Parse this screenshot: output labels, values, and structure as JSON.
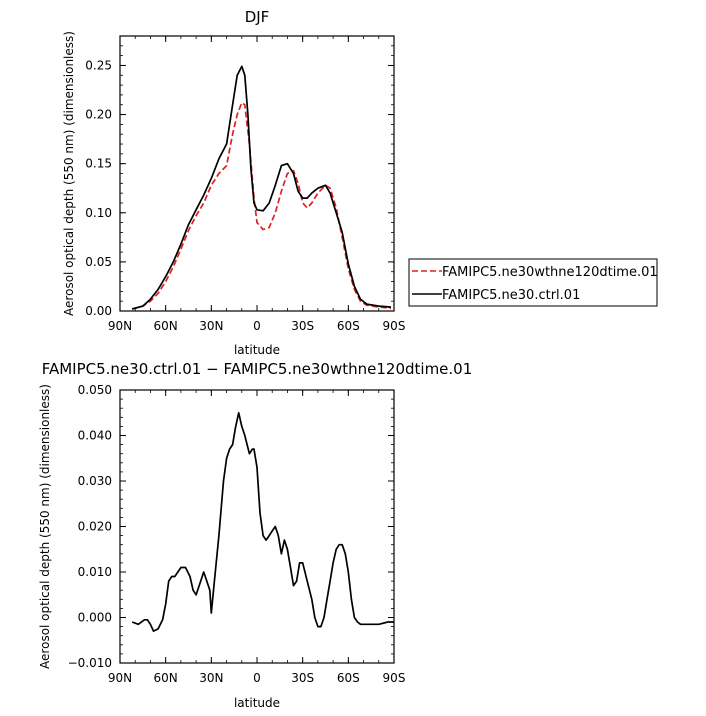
{
  "chart_data": [
    {
      "type": "line",
      "title": "DJF",
      "xlabel": "latitude",
      "ylabel": "Aerosol optical depth (550 nm) (dimensionless)",
      "xlim": [
        90,
        -90
      ],
      "ylim": [
        0.0,
        0.28
      ],
      "x_ticks": [
        {
          "value": 90,
          "label": "90N"
        },
        {
          "value": 60,
          "label": "60N"
        },
        {
          "value": 30,
          "label": "30N"
        },
        {
          "value": 0,
          "label": "0"
        },
        {
          "value": -30,
          "label": "30S"
        },
        {
          "value": -60,
          "label": "60S"
        },
        {
          "value": -90,
          "label": "90S"
        }
      ],
      "y_ticks": [
        {
          "value": 0.0,
          "label": "0.00"
        },
        {
          "value": 0.05,
          "label": "0.05"
        },
        {
          "value": 0.1,
          "label": "0.10"
        },
        {
          "value": 0.15,
          "label": "0.15"
        },
        {
          "value": 0.2,
          "label": "0.20"
        },
        {
          "value": 0.25,
          "label": "0.25"
        }
      ],
      "legend": "right",
      "grid": false,
      "series": [
        {
          "name": "FAMIPC5.ne30wthne120dtime.01",
          "color": "#e02020",
          "dash": "dashed",
          "x": [
            82,
            75,
            70,
            65,
            60,
            55,
            50,
            45,
            40,
            35,
            30,
            25,
            20,
            16,
            13,
            10,
            8,
            5,
            2,
            0,
            -4,
            -8,
            -12,
            -16,
            -20,
            -24,
            -27,
            -30,
            -33,
            -36,
            -40,
            -45,
            -48,
            -52,
            -56,
            -60,
            -64,
            -68,
            -72,
            -80,
            -88
          ],
          "y": [
            0.002,
            0.005,
            0.01,
            0.018,
            0.03,
            0.045,
            0.063,
            0.082,
            0.097,
            0.11,
            0.128,
            0.14,
            0.148,
            0.18,
            0.2,
            0.212,
            0.21,
            0.17,
            0.115,
            0.09,
            0.083,
            0.085,
            0.1,
            0.122,
            0.14,
            0.143,
            0.13,
            0.11,
            0.105,
            0.11,
            0.12,
            0.128,
            0.125,
            0.105,
            0.075,
            0.043,
            0.022,
            0.01,
            0.006,
            0.004,
            0.003
          ]
        },
        {
          "name": "FAMIPC5.ne30.ctrl.01",
          "color": "#000000",
          "dash": "solid",
          "x": [
            82,
            75,
            70,
            65,
            60,
            55,
            50,
            45,
            40,
            35,
            30,
            25,
            20,
            16,
            13,
            10,
            8,
            6,
            4,
            2,
            0,
            -4,
            -8,
            -12,
            -16,
            -20,
            -24,
            -27,
            -30,
            -33,
            -36,
            -40,
            -45,
            -48,
            -52,
            -56,
            -60,
            -64,
            -68,
            -72,
            -80,
            -88
          ],
          "y": [
            0.002,
            0.005,
            0.012,
            0.022,
            0.035,
            0.05,
            0.068,
            0.088,
            0.103,
            0.118,
            0.135,
            0.155,
            0.17,
            0.21,
            0.24,
            0.249,
            0.24,
            0.2,
            0.145,
            0.11,
            0.103,
            0.102,
            0.11,
            0.128,
            0.148,
            0.15,
            0.14,
            0.122,
            0.115,
            0.115,
            0.12,
            0.125,
            0.128,
            0.12,
            0.1,
            0.08,
            0.048,
            0.025,
            0.012,
            0.007,
            0.005,
            0.004
          ]
        }
      ]
    },
    {
      "type": "line",
      "title": "FAMIPC5.ne30.ctrl.01 − FAMIPC5.ne30wthne120dtime.01",
      "xlabel": "latitude",
      "ylabel": "Aerosol optical depth (550 nm) (dimensionless)",
      "xlim": [
        90,
        -90
      ],
      "ylim": [
        -0.01,
        0.05
      ],
      "x_ticks": [
        {
          "value": 90,
          "label": "90N"
        },
        {
          "value": 60,
          "label": "60N"
        },
        {
          "value": 30,
          "label": "30N"
        },
        {
          "value": 0,
          "label": "0"
        },
        {
          "value": -30,
          "label": "30S"
        },
        {
          "value": -60,
          "label": "60S"
        },
        {
          "value": -90,
          "label": "90S"
        }
      ],
      "y_ticks": [
        {
          "value": -0.01,
          "label": "−0.010"
        },
        {
          "value": 0.0,
          "label": "0.000"
        },
        {
          "value": 0.01,
          "label": "0.010"
        },
        {
          "value": 0.02,
          "label": "0.020"
        },
        {
          "value": 0.03,
          "label": "0.030"
        },
        {
          "value": 0.04,
          "label": "0.040"
        },
        {
          "value": 0.05,
          "label": "0.050"
        }
      ],
      "grid": false,
      "series": [
        {
          "color": "#000000",
          "dash": "solid",
          "x": [
            82,
            78,
            74,
            72,
            70,
            68,
            65,
            62,
            60,
            58,
            56,
            54,
            50,
            47,
            44,
            42,
            40,
            38,
            35,
            33,
            31,
            30,
            28,
            25,
            22,
            20,
            18,
            16,
            14,
            12,
            10,
            8,
            5,
            3,
            2,
            0,
            -2,
            -4,
            -6,
            -8,
            -10,
            -12,
            -14,
            -16,
            -18,
            -20,
            -22,
            -24,
            -26,
            -28,
            -30,
            -33,
            -36,
            -38,
            -40,
            -42,
            -44,
            -46,
            -48,
            -50,
            -52,
            -54,
            -56,
            -58,
            -60,
            -62,
            -64,
            -66,
            -68,
            -70,
            -74,
            -80,
            -86,
            -90
          ],
          "y": [
            -0.001,
            -0.0015,
            -0.0005,
            -0.0005,
            -0.0015,
            -0.003,
            -0.0025,
            -0.0005,
            0.003,
            0.008,
            0.009,
            0.009,
            0.011,
            0.011,
            0.009,
            0.006,
            0.005,
            0.007,
            0.01,
            0.008,
            0.006,
            0.001,
            0.008,
            0.018,
            0.03,
            0.035,
            0.037,
            0.038,
            0.042,
            0.045,
            0.042,
            0.04,
            0.036,
            0.037,
            0.037,
            0.033,
            0.023,
            0.018,
            0.017,
            0.018,
            0.019,
            0.02,
            0.018,
            0.014,
            0.017,
            0.015,
            0.011,
            0.007,
            0.008,
            0.012,
            0.012,
            0.008,
            0.004,
            0.0,
            -0.002,
            -0.002,
            0.0,
            0.004,
            0.008,
            0.012,
            0.015,
            0.016,
            0.016,
            0.014,
            0.01,
            0.004,
            0.0,
            -0.001,
            -0.0015,
            -0.0015,
            -0.0015,
            -0.0015,
            -0.001,
            -0.001
          ]
        }
      ]
    }
  ]
}
